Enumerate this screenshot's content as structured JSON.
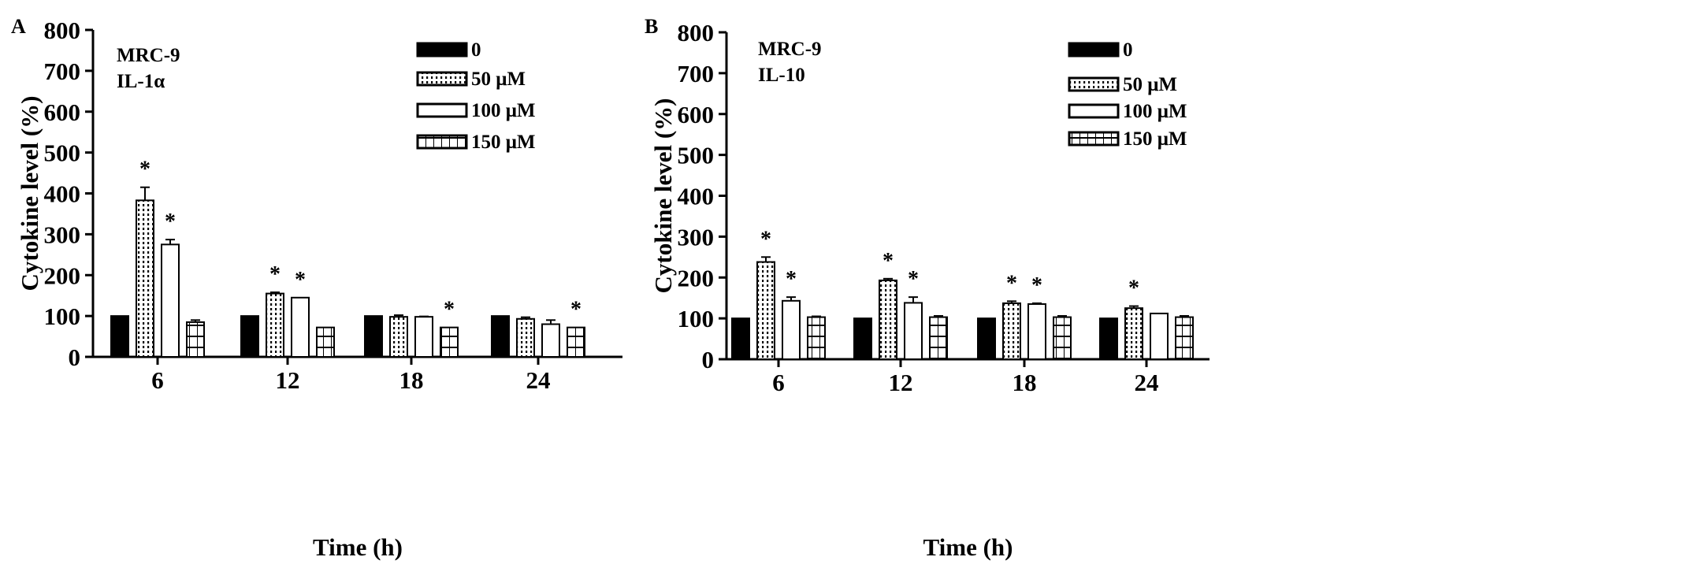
{
  "chart_data": [
    {
      "type": "bar",
      "panel_label": "A",
      "annotation": [
        "MRC-9",
        "IL-1α"
      ],
      "title": "",
      "xlabel": "Time (h)",
      "ylabel": "Cytokine level (%)",
      "ylim": [
        0,
        800
      ],
      "yticks": [
        "0",
        "100",
        "200",
        "300",
        "400",
        "500",
        "600",
        "700",
        "800"
      ],
      "categories": [
        "6",
        "12",
        "18",
        "24"
      ],
      "legend_position": "top-right",
      "series": [
        {
          "name": "0",
          "fill": "solid",
          "values": [
            100,
            100,
            100,
            100
          ],
          "errors": [
            0,
            0,
            0,
            0
          ],
          "significant": [
            false,
            false,
            false,
            false
          ]
        },
        {
          "name": "50 μM",
          "fill": "dots",
          "values": [
            383,
            155,
            98,
            93
          ],
          "errors": [
            32,
            3,
            4,
            4
          ],
          "significant": [
            true,
            true,
            false,
            false
          ]
        },
        {
          "name": "100 μM",
          "fill": "empty",
          "values": [
            275,
            145,
            98,
            80
          ],
          "errors": [
            12,
            0,
            1,
            10
          ],
          "significant": [
            true,
            true,
            false,
            false
          ]
        },
        {
          "name": "150 μM",
          "fill": "grid",
          "values": [
            85,
            72,
            72,
            72
          ],
          "errors": [
            5,
            0,
            0,
            0
          ],
          "significant": [
            false,
            false,
            true,
            true
          ]
        }
      ]
    },
    {
      "type": "bar",
      "panel_label": "B",
      "annotation": [
        "MRC-9",
        "IL-10"
      ],
      "title": "",
      "xlabel": "Time (h)",
      "ylabel": "Cytokine level (%)",
      "ylim": [
        0,
        800
      ],
      "yticks": [
        "0",
        "100",
        "200",
        "300",
        "400",
        "500",
        "600",
        "700",
        "800"
      ],
      "categories": [
        "6",
        "12",
        "18",
        "24"
      ],
      "legend_position": "top-right",
      "series": [
        {
          "name": "0",
          "fill": "solid",
          "values": [
            100,
            100,
            100,
            100
          ],
          "errors": [
            0,
            0,
            0,
            0
          ],
          "significant": [
            false,
            false,
            false,
            false
          ]
        },
        {
          "name": "50 μM",
          "fill": "dots",
          "values": [
            238,
            193,
            137,
            125
          ],
          "errors": [
            12,
            4,
            5,
            5
          ],
          "significant": [
            true,
            true,
            true,
            true
          ]
        },
        {
          "name": "100 μM",
          "fill": "empty",
          "values": [
            143,
            138,
            135,
            112
          ],
          "errors": [
            9,
            14,
            2,
            0
          ],
          "significant": [
            true,
            true,
            true,
            false
          ]
        },
        {
          "name": "150 μM",
          "fill": "grid",
          "values": [
            103,
            103,
            103,
            103
          ],
          "errors": [
            2,
            3,
            3,
            3
          ],
          "significant": [
            false,
            false,
            false,
            false
          ]
        }
      ]
    }
  ]
}
